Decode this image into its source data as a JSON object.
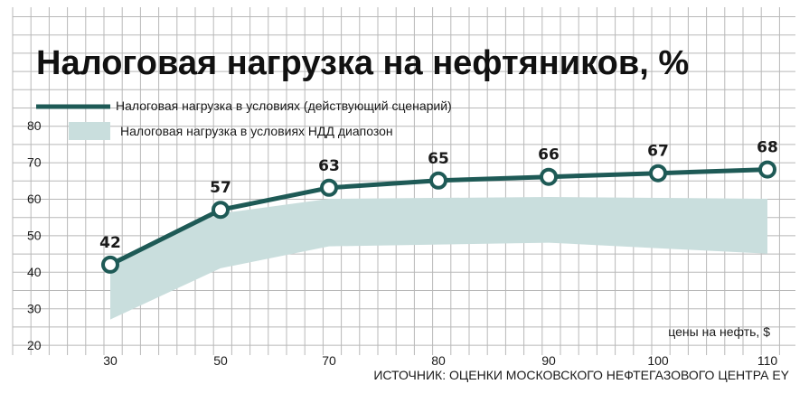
{
  "chart_data": {
    "type": "line",
    "title": "Налоговая нагрузка на нефтяников, %",
    "x": [
      30,
      50,
      70,
      80,
      90,
      100,
      110
    ],
    "series": [
      {
        "name": "Налоговая нагрузка в условиях (действующий сценарий)",
        "values": [
          42,
          57,
          63,
          65,
          66,
          67,
          68
        ],
        "labels": [
          "42",
          "57",
          "63",
          "65",
          "66",
          "67",
          "68"
        ]
      }
    ],
    "band": {
      "name": "Налоговая нагрузка в условиях НДД диапозон",
      "x": [
        30,
        50,
        70,
        90,
        110
      ],
      "upper": [
        43,
        56,
        60,
        60.5,
        60
      ],
      "lower": [
        27,
        41,
        47,
        48,
        45
      ]
    },
    "x_ticks": [
      "30",
      "50",
      "70",
      "80",
      "90",
      "100",
      "110"
    ],
    "y_ticks": [
      "20",
      "30",
      "40",
      "50",
      "60",
      "70",
      "80"
    ],
    "ylim": [
      20,
      80
    ],
    "xlabel": "цены на нефть, $",
    "source": "ИСТОЧНИК: ОЦЕНКИ МОСКОВСКОГО НЕФТЕГАЗОВОГО ЦЕНТРА EY",
    "grid": true,
    "legend_position": "top-left",
    "colors": {
      "line": "#1e5a56",
      "band": "#c9dedd",
      "grid": "#b8b8b8",
      "marker_fill": "#ffffff"
    }
  }
}
